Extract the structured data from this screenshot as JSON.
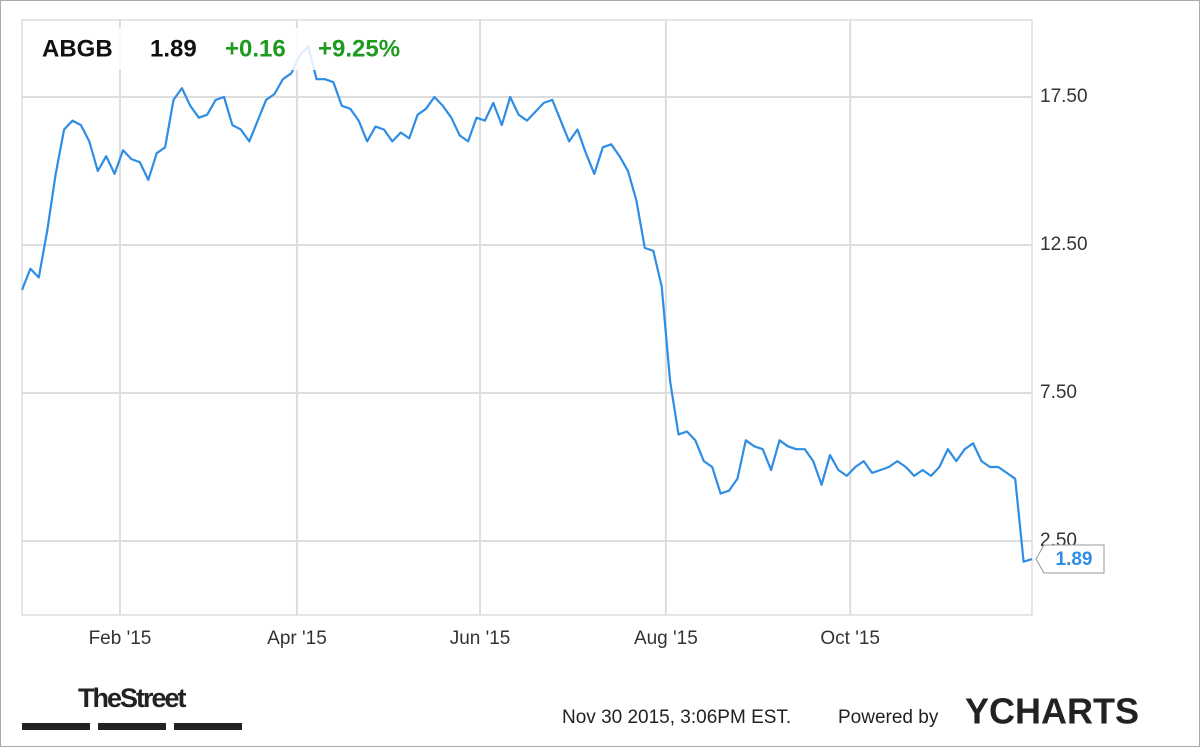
{
  "chart_data": {
    "type": "line",
    "ticker": "ABGB",
    "price": "1.89",
    "change": "+0.16",
    "change_percent": "+9.25%",
    "series": [
      {
        "name": "ABGB",
        "color": "#2f8de4",
        "values": [
          10.98,
          11.7,
          11.4,
          13.0,
          14.9,
          16.4,
          16.7,
          16.55,
          16.0,
          15.0,
          15.5,
          14.9,
          15.7,
          15.4,
          15.3,
          14.7,
          15.6,
          15.8,
          17.4,
          17.8,
          17.2,
          16.8,
          16.9,
          17.4,
          17.5,
          16.55,
          16.4,
          16.0,
          16.7,
          17.4,
          17.6,
          18.1,
          18.3,
          18.9,
          19.2,
          18.1,
          18.1,
          18.0,
          17.2,
          17.1,
          16.7,
          16.0,
          16.5,
          16.4,
          16.0,
          16.3,
          16.1,
          16.9,
          17.1,
          17.5,
          17.2,
          16.8,
          16.2,
          16.0,
          16.8,
          16.7,
          17.3,
          16.55,
          17.5,
          16.9,
          16.7,
          17.0,
          17.3,
          17.4,
          16.7,
          16.0,
          16.4,
          15.6,
          14.9,
          15.8,
          15.9,
          15.5,
          15.0,
          14.0,
          12.4,
          12.3,
          11.1,
          7.9,
          6.1,
          6.2,
          5.9,
          5.2,
          5.0,
          4.1,
          4.2,
          4.6,
          5.9,
          5.7,
          5.6,
          4.9,
          5.9,
          5.7,
          5.6,
          5.6,
          5.2,
          4.4,
          5.4,
          4.9,
          4.7,
          5.0,
          5.2,
          4.8,
          4.9,
          5.0,
          5.2,
          5.0,
          4.7,
          4.9,
          4.7,
          5.0,
          5.6,
          5.2,
          5.6,
          5.8,
          5.2,
          5.0,
          5.0,
          4.8,
          4.6,
          1.8,
          1.89
        ]
      }
    ],
    "xlim": [
      0,
      120
    ],
    "xticks": [
      {
        "value": 11.64,
        "label": "Feb '15"
      },
      {
        "value": 32.67,
        "label": "Apr '15"
      },
      {
        "value": 54.42,
        "label": "Jun '15"
      },
      {
        "value": 76.5,
        "label": "Aug '15"
      },
      {
        "value": 98.4,
        "label": "Oct '15"
      }
    ],
    "ylim": [
      0,
      20.1
    ],
    "yticks": [
      {
        "value": 2.5,
        "label": "2.50"
      },
      {
        "value": 7.5,
        "label": "7.50"
      },
      {
        "value": 12.5,
        "label": "12.50"
      },
      {
        "value": 17.5,
        "label": "17.50"
      }
    ],
    "grid": true,
    "source": "TheStreet",
    "timestamp": "Nov 30 2015, 3:06PM EST.",
    "powered_by": "Powered by",
    "brand": "YCHARTS"
  }
}
